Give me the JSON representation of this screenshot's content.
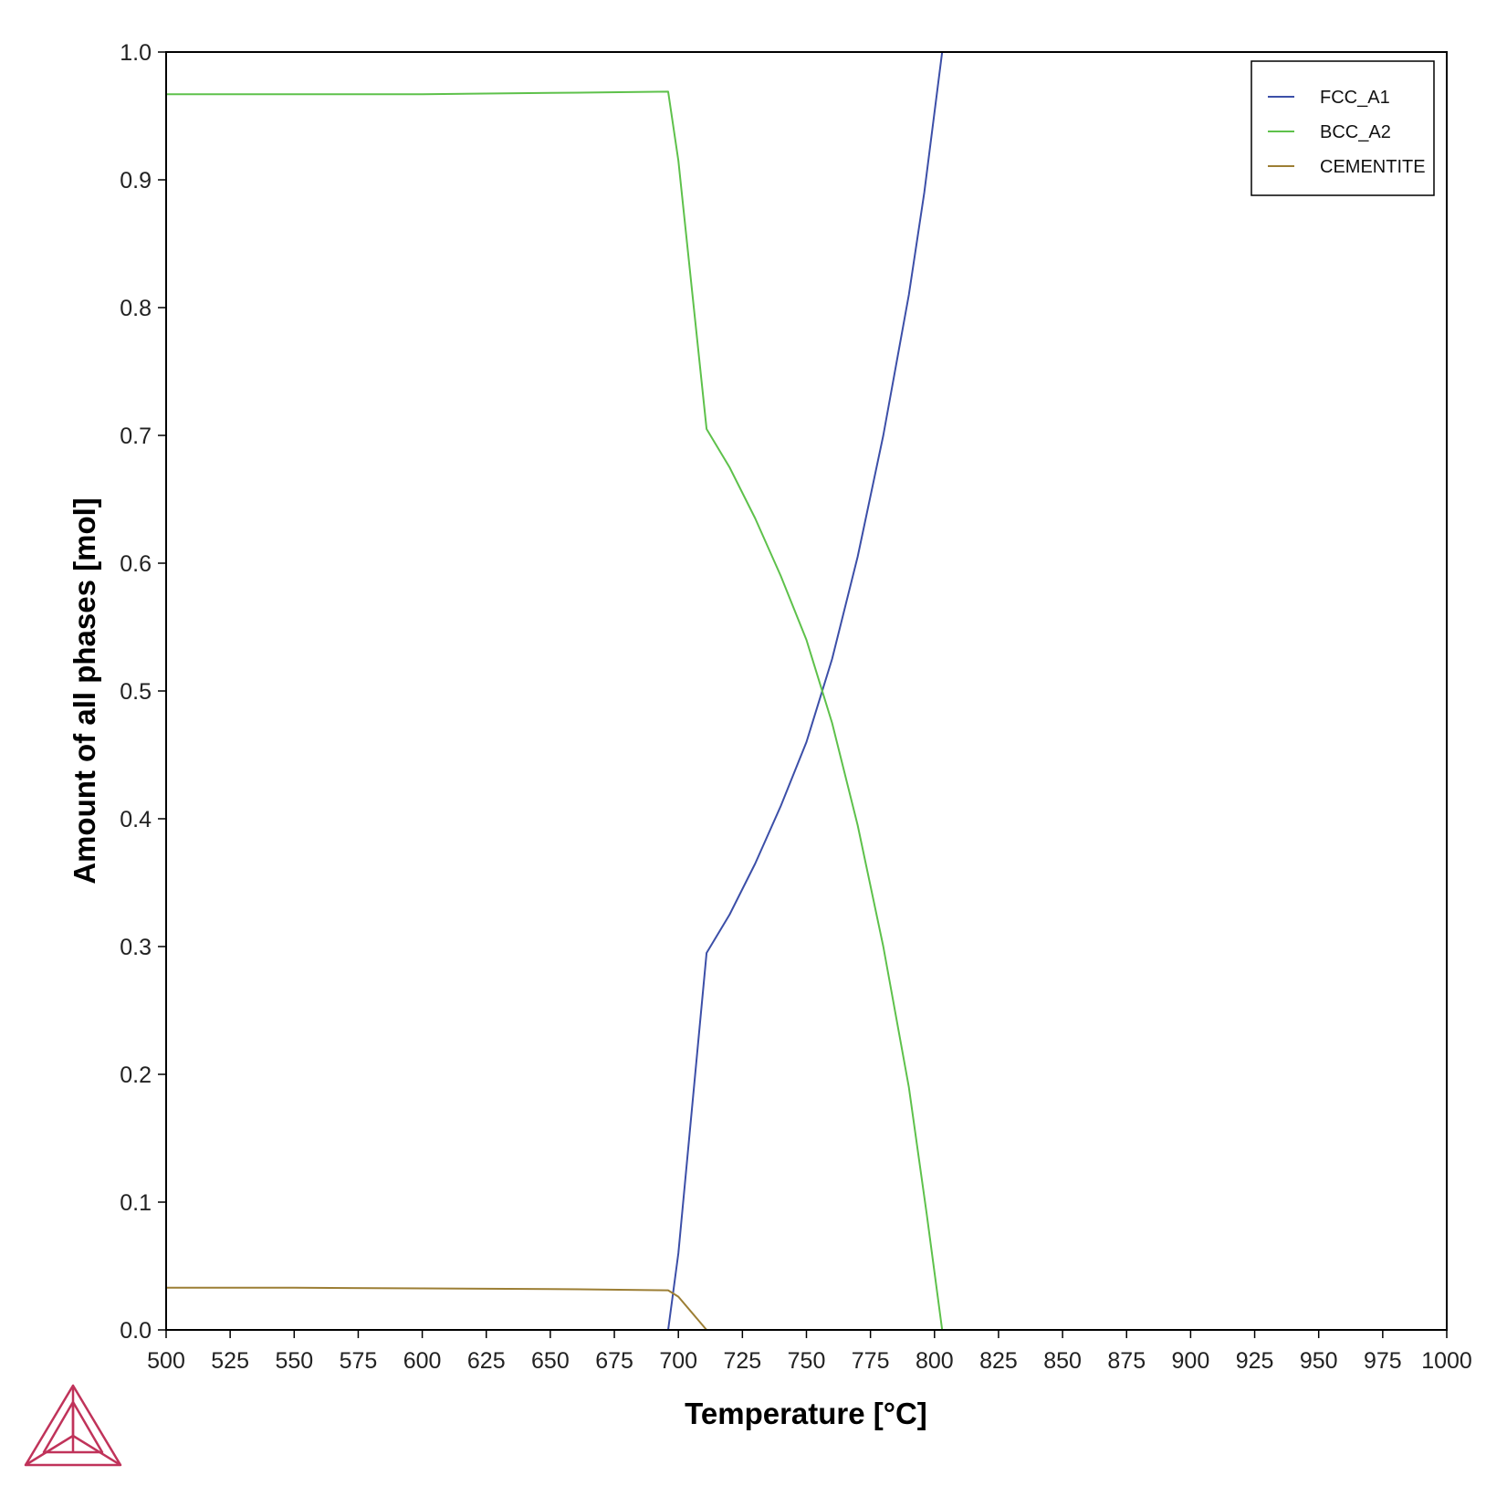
{
  "chart_data": {
    "type": "line",
    "xlabel": "Temperature [°C]",
    "ylabel": "Amount of all phases [mol]",
    "xlim": [
      500,
      1000
    ],
    "ylim": [
      0,
      1.0
    ],
    "x_ticks": [
      "500",
      "525",
      "550",
      "575",
      "600",
      "625",
      "650",
      "675",
      "700",
      "725",
      "750",
      "775",
      "800",
      "825",
      "850",
      "875",
      "900",
      "925",
      "950",
      "975",
      "1000"
    ],
    "y_ticks": [
      "0.0",
      "0.1",
      "0.2",
      "0.3",
      "0.4",
      "0.5",
      "0.6",
      "0.7",
      "0.8",
      "0.9",
      "1.0"
    ],
    "grid": false,
    "legend_position": "top-right",
    "series": [
      {
        "name": "FCC_A1",
        "color": "#3c4fa8",
        "points": [
          [
            696,
            0
          ],
          [
            700,
            0.06
          ],
          [
            711,
            0.295
          ],
          [
            720,
            0.325
          ],
          [
            730,
            0.365
          ],
          [
            740,
            0.41
          ],
          [
            750,
            0.46
          ],
          [
            760,
            0.525
          ],
          [
            770,
            0.605
          ],
          [
            780,
            0.7
          ],
          [
            790,
            0.81
          ],
          [
            796,
            0.89
          ],
          [
            803,
            1.0
          ]
        ]
      },
      {
        "name": "BCC_A2",
        "color": "#5ec14b",
        "points": [
          [
            500,
            0.967
          ],
          [
            600,
            0.967
          ],
          [
            650,
            0.968
          ],
          [
            696,
            0.969
          ],
          [
            700,
            0.915
          ],
          [
            711,
            0.705
          ],
          [
            720,
            0.675
          ],
          [
            730,
            0.635
          ],
          [
            740,
            0.59
          ],
          [
            750,
            0.54
          ],
          [
            760,
            0.475
          ],
          [
            770,
            0.395
          ],
          [
            780,
            0.3
          ],
          [
            790,
            0.19
          ],
          [
            797,
            0.09
          ],
          [
            803,
            0
          ]
        ]
      },
      {
        "name": "CEMENTITE",
        "color": "#9c7e34",
        "points": [
          [
            500,
            0.033
          ],
          [
            550,
            0.033
          ],
          [
            600,
            0.0325
          ],
          [
            650,
            0.032
          ],
          [
            696,
            0.031
          ],
          [
            700,
            0.026
          ],
          [
            711,
            0
          ]
        ]
      }
    ]
  },
  "logo": {
    "name": "Thermo-Calc logo"
  }
}
